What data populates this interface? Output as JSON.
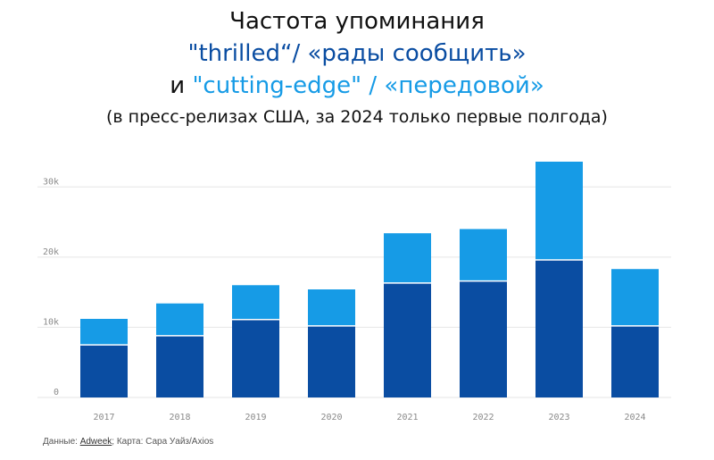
{
  "title": {
    "line1": "Частота упоминания",
    "line2_a": "\"thrilled“/",
    "line2_b": " «рады сообщить»",
    "line3_prefix": "и ",
    "line3_a": "\"cutting-edge\"",
    "line3_sep": " / ",
    "line3_b": "«передовой»",
    "subtitle": "(в пресс-релизах США, за 2024 только первые полгода)"
  },
  "source": {
    "prefix": "Данные: ",
    "link": "Adweek",
    "suffix": "; Карта: Сара Уайз/Axios"
  },
  "colors": {
    "dark": "#0a4da2",
    "light": "#169be6",
    "grid": "#e6e6e6"
  },
  "chart_data": {
    "type": "bar",
    "stacked": true,
    "categories": [
      "2017",
      "2018",
      "2019",
      "2020",
      "2021",
      "2022",
      "2023",
      "2024"
    ],
    "series": [
      {
        "values": [
          7500,
          8800,
          11100,
          10200,
          16300,
          16600,
          19600,
          10200
        ],
        "color": "#0a4da2"
      },
      {
        "values": [
          3700,
          4600,
          4900,
          5200,
          7100,
          7400,
          14000,
          8100
        ],
        "color": "#169be6"
      }
    ],
    "yticks": [
      0,
      10000,
      20000,
      30000
    ],
    "ytick_labels": [
      "0",
      "10k",
      "20k",
      "30k"
    ],
    "ylim": [
      0,
      35000
    ],
    "grid": true
  }
}
